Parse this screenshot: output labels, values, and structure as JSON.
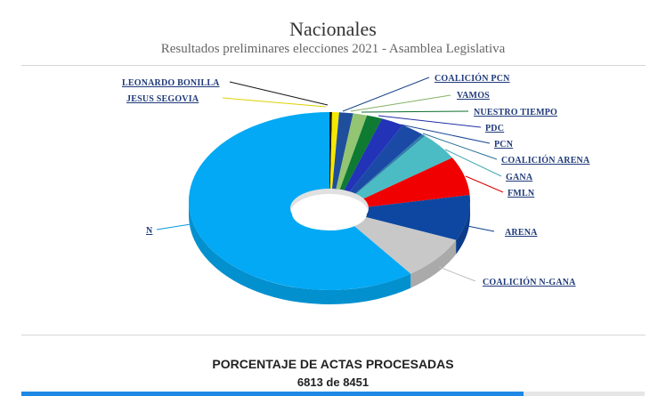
{
  "header": {
    "title": "Nacionales",
    "subtitle": "Resultados preliminares elecciones 2021 - Asamblea Legislativa"
  },
  "chart_data": {
    "type": "pie",
    "variant": "3d-doughnut",
    "title": "Nacionales",
    "subtitle": "Resultados preliminares elecciones 2021 - Asamblea Legislativa",
    "start_angle": "12 o'clock, clockwise",
    "labels_position": "outside with leader lines",
    "slices": [
      {
        "label": "LEONARDO BONILLA",
        "value": 0.3,
        "color": "#1a1a1a"
      },
      {
        "label": "JESUS SEGOVIA",
        "value": 0.8,
        "color": "#f5e800"
      },
      {
        "label": "COALICIÓN PCN",
        "value": 1.6,
        "color": "#1f4e9c"
      },
      {
        "label": "VAMOS",
        "value": 1.6,
        "color": "#93c572"
      },
      {
        "label": "NUESTRO TIEMPO",
        "value": 1.8,
        "color": "#0e7a32"
      },
      {
        "label": "PDC",
        "value": 2.6,
        "color": "#2233b8"
      },
      {
        "label": "PCN",
        "value": 2.8,
        "color": "#1a4aa6"
      },
      {
        "label": "COALICIÓN ARENA",
        "value": 0.4,
        "color": "#2f7fa8"
      },
      {
        "label": "GANA",
        "value": 5.0,
        "color": "#4bbcc4"
      },
      {
        "label": "FMLN",
        "value": 7.0,
        "color": "#f00000"
      },
      {
        "label": "ARENA",
        "value": 8.3,
        "color": "#0d47a1"
      },
      {
        "label": "COALICIÓN N-GANA",
        "value": 8.0,
        "color": "#c8c8c8"
      },
      {
        "label": "N",
        "value": 59.8,
        "color": "#03a9f4"
      }
    ]
  },
  "progress": {
    "title": "PORCENTAJE DE ACTAS PROCESADAS",
    "count_text": "6813 de 8451",
    "processed": 6813,
    "total": 8451,
    "percent": 80.62,
    "bar_color": "#1e88e5",
    "track_color": "#e6e6e6"
  }
}
